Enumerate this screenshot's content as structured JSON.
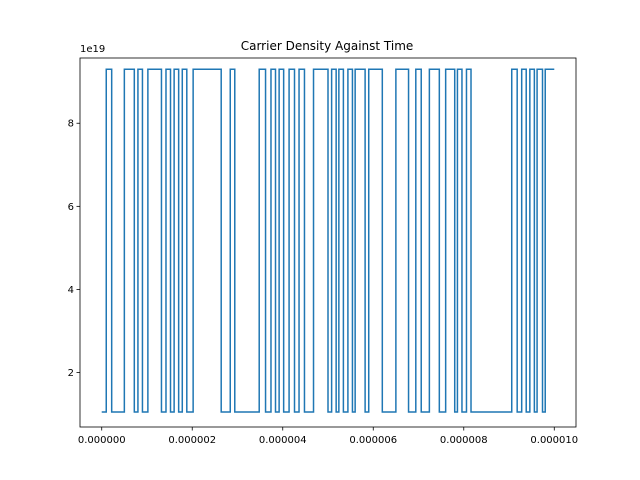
{
  "chart_data": {
    "type": "line",
    "title": "Carrier Density Against Time",
    "xlabel": "",
    "ylabel": "",
    "y_offset_label": "1e19",
    "xlim": [
      -4.8e-07,
      1.048e-05
    ],
    "ylim": [
      0.0069,
      0.0957
    ],
    "x_ticks": [
      0,
      2e-06,
      4e-06,
      6e-06,
      8e-06,
      1e-05
    ],
    "x_tick_labels": [
      "0.000000",
      "0.000002",
      "0.000004",
      "0.000006",
      "0.000008",
      "0.000010"
    ],
    "y_ticks": [
      0.02,
      0.04,
      0.06,
      0.08
    ],
    "y_tick_labels": [
      "2",
      "4",
      "6",
      "8"
    ],
    "grid": false,
    "line_color": "#1f77b4",
    "low_value": 0.0105,
    "high_value": 0.093,
    "high_intervals": [
      [
        1e-07,
        2.2e-07
      ],
      [
        5e-07,
        7.2e-07
      ],
      [
        8e-07,
        9e-07
      ],
      [
        1.02e-06,
        1.32e-06
      ],
      [
        1.42e-06,
        1.52e-06
      ],
      [
        1.6e-06,
        1.7e-06
      ],
      [
        1.78e-06,
        1.88e-06
      ],
      [
        2.02e-06,
        2.64e-06
      ],
      [
        2.84e-06,
        2.94e-06
      ],
      [
        3.48e-06,
        3.62e-06
      ],
      [
        3.74e-06,
        3.84e-06
      ],
      [
        3.92e-06,
        4.02e-06
      ],
      [
        4.14e-06,
        4.26e-06
      ],
      [
        4.36e-06,
        4.48e-06
      ],
      [
        4.68e-06,
        5e-06
      ],
      [
        5.08e-06,
        5.18e-06
      ],
      [
        5.24e-06,
        5.34e-06
      ],
      [
        5.44e-06,
        5.54e-06
      ],
      [
        5.6e-06,
        5.82e-06
      ],
      [
        5.9e-06,
        6.2e-06
      ],
      [
        6.5e-06,
        6.78e-06
      ],
      [
        6.94e-06,
        7.06e-06
      ],
      [
        7.24e-06,
        7.46e-06
      ],
      [
        7.6e-06,
        7.8e-06
      ],
      [
        7.86e-06,
        7.96e-06
      ],
      [
        8.06e-06,
        8.16e-06
      ],
      [
        9.06e-06,
        9.18e-06
      ],
      [
        9.28e-06,
        9.38e-06
      ],
      [
        9.46e-06,
        9.56e-06
      ],
      [
        9.62e-06,
        9.74e-06
      ],
      [
        9.8e-06,
        1e-05
      ]
    ],
    "x_start": 0,
    "x_end": 1e-05
  }
}
